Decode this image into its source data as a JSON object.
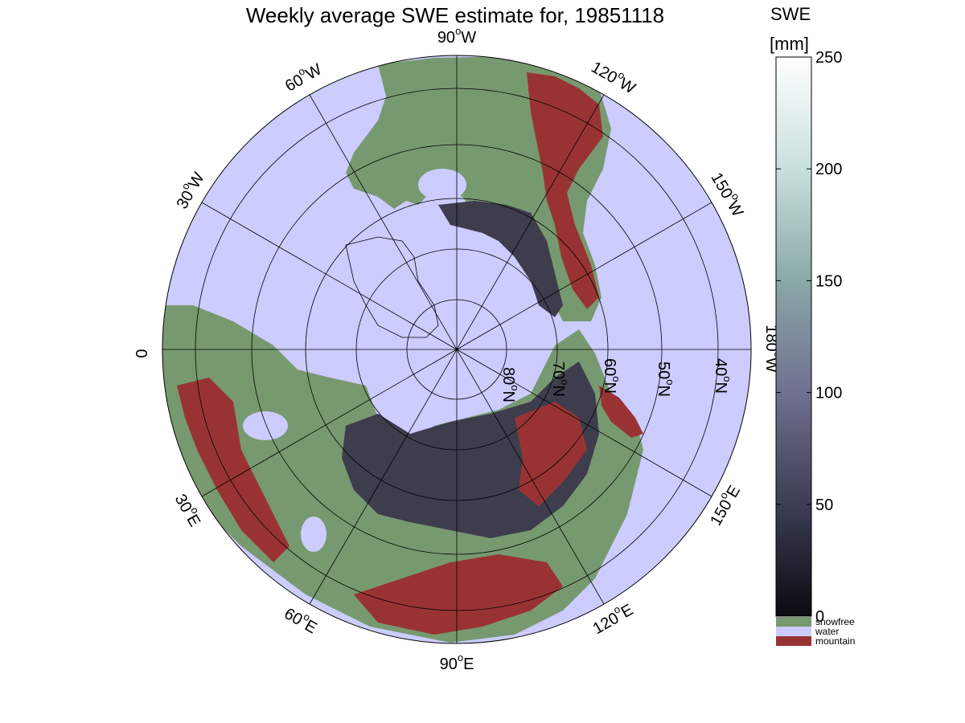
{
  "title": "Weekly average SWE estimate for, 19851118",
  "colorbar": {
    "label_line1": "SWE",
    "label_line2": "[mm]",
    "ticks": [
      0,
      50,
      100,
      150,
      200,
      250
    ],
    "range": [
      0,
      250
    ],
    "gradient_stops": [
      "#0a0a10",
      "#3d3d55",
      "#707090",
      "#8aa8a8",
      "#c8e0dc",
      "#ffffff"
    ],
    "categories": [
      {
        "label": "snowfree",
        "color": "#779970"
      },
      {
        "label": "water",
        "color": "#ccccff"
      },
      {
        "label": "mountain",
        "color": "#993333"
      }
    ]
  },
  "map": {
    "projection": "north-polar-stereographic",
    "colors": {
      "water": "#ccccff",
      "land": "#779970",
      "snow": "#3d3d4d",
      "mountain": "#993333",
      "grid": "#000000"
    },
    "meridian_labels": [
      {
        "name": "lon-0",
        "base": "0",
        "sup": "",
        "dir": ""
      },
      {
        "name": "lon-30w",
        "base": "30",
        "sup": "o",
        "dir": "W"
      },
      {
        "name": "lon-60w",
        "base": "60",
        "sup": "o",
        "dir": "W"
      },
      {
        "name": "lon-90w",
        "base": "90",
        "sup": "o",
        "dir": "W"
      },
      {
        "name": "lon-120w",
        "base": "120",
        "sup": "o",
        "dir": "W"
      },
      {
        "name": "lon-150w",
        "base": "150",
        "sup": "o",
        "dir": "W"
      },
      {
        "name": "lon-180w",
        "base": "180",
        "sup": "o",
        "dir": "W"
      },
      {
        "name": "lon-150e",
        "base": "150",
        "sup": "o",
        "dir": "E"
      },
      {
        "name": "lon-120e",
        "base": "120",
        "sup": "o",
        "dir": "E"
      },
      {
        "name": "lon-90e",
        "base": "90",
        "sup": "o",
        "dir": "E"
      },
      {
        "name": "lon-60e",
        "base": "60",
        "sup": "o",
        "dir": "E"
      },
      {
        "name": "lon-30e",
        "base": "30",
        "sup": "o",
        "dir": "E"
      }
    ],
    "parallel_labels": [
      {
        "name": "lat-80n",
        "base": "80",
        "sup": "o",
        "dir": "N"
      },
      {
        "name": "lat-70n",
        "base": "70",
        "sup": "o",
        "dir": "N"
      },
      {
        "name": "lat-60n",
        "base": "60",
        "sup": "o",
        "dir": "N"
      },
      {
        "name": "lat-50n",
        "base": "50",
        "sup": "o",
        "dir": "N"
      },
      {
        "name": "lat-40n",
        "base": "40",
        "sup": "o",
        "dir": "N"
      }
    ]
  }
}
